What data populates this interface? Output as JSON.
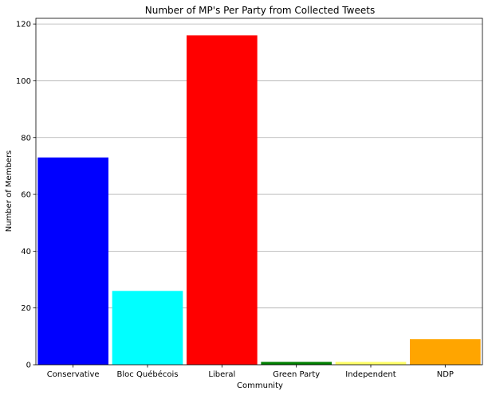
{
  "chart_data": {
    "type": "bar",
    "title": "Number of MP's Per Party from Collected Tweets",
    "xlabel": "Community",
    "ylabel": "Number of Members",
    "categories": [
      "Conservative",
      "Bloc Québécois",
      "Liberal",
      "Green Party",
      "Independent",
      "NDP"
    ],
    "values": [
      73,
      26,
      116,
      1,
      1,
      9
    ],
    "colors": [
      "#0000ff",
      "#00ffff",
      "#ff0000",
      "#008000",
      "#ffff66",
      "#ffa500"
    ],
    "yticks": [
      0,
      20,
      40,
      60,
      80,
      100,
      120
    ],
    "ylim": [
      0,
      122
    ],
    "grid": "horizontal",
    "legend": "none"
  }
}
